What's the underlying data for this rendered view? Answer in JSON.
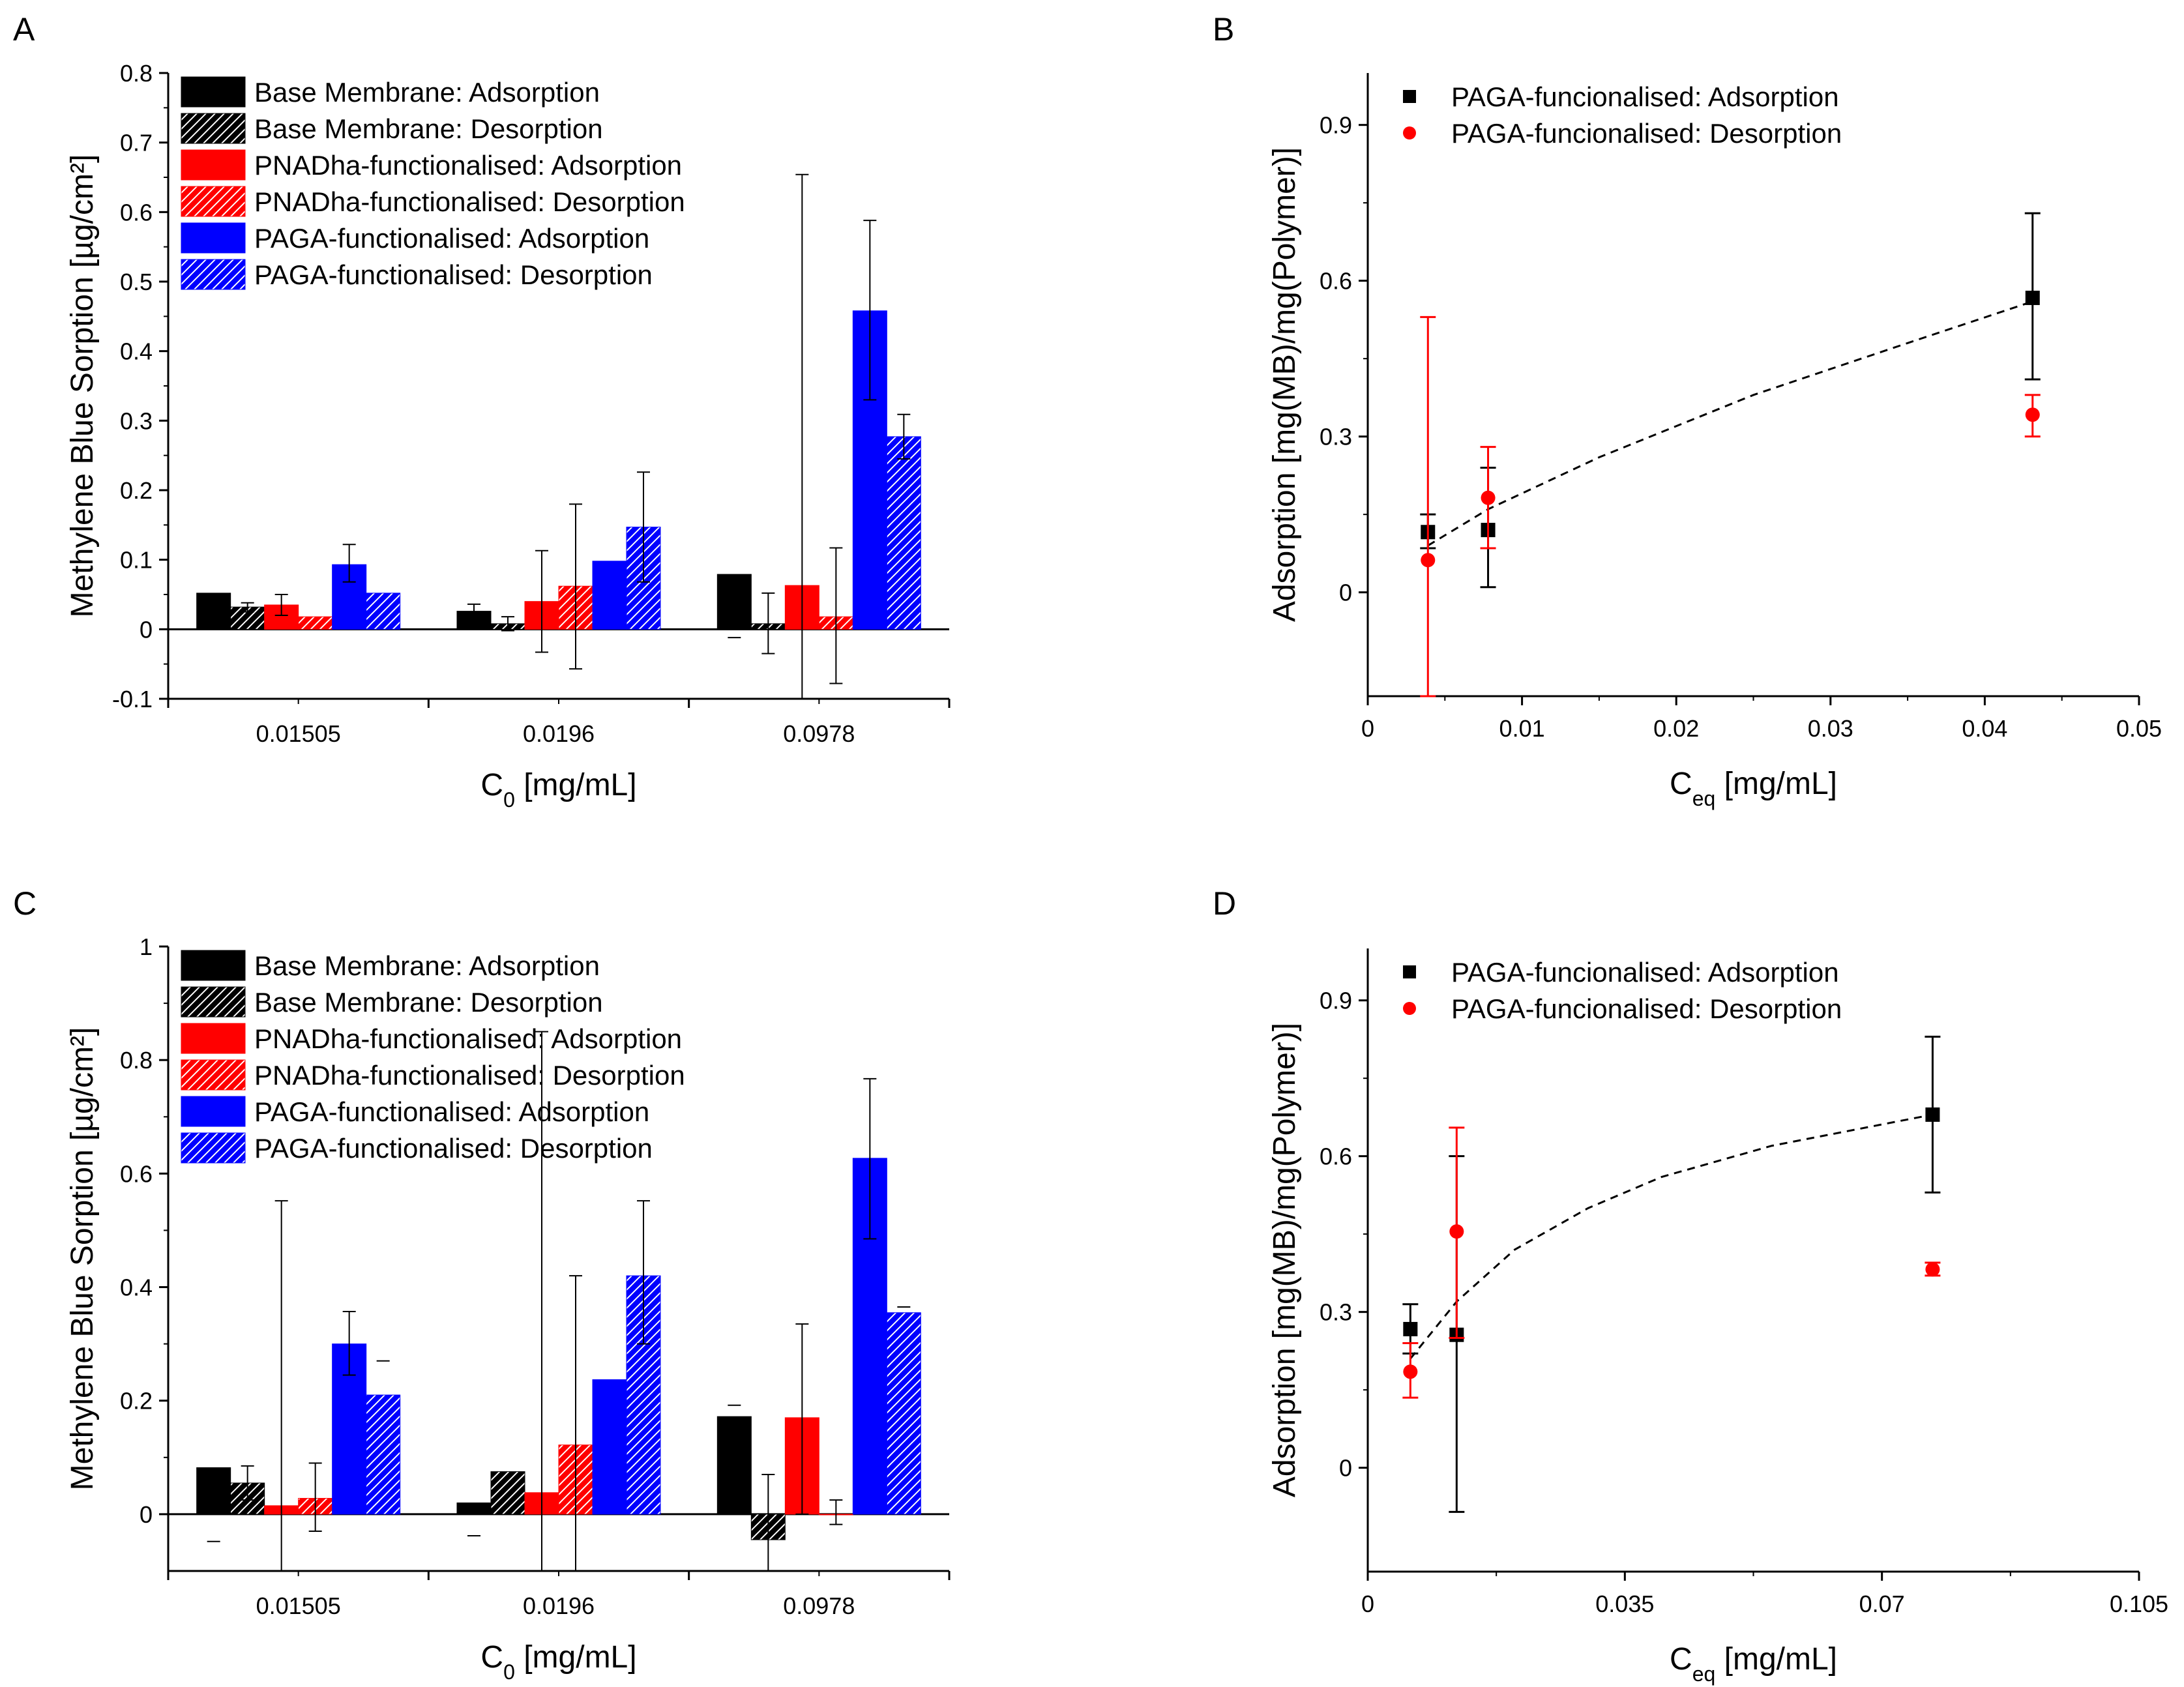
{
  "chart_data": [
    {
      "panel": "A",
      "type": "bar",
      "xlabel": "C",
      "xlabel_sub": "0",
      "xlabel_unit": " [mg/mL]",
      "ylabel": "Methylene Blue Sorption [µg/cm²]",
      "ylim": [
        -0.1,
        0.8
      ],
      "yticks": [
        -0.1,
        0,
        0.1,
        0.2,
        0.3,
        0.4,
        0.5,
        0.6,
        0.7,
        0.8
      ],
      "ytick_labels": [
        "-0.1",
        "0",
        "0.1",
        "0.2",
        "0.3",
        "0.4",
        "0.5",
        "0.6",
        "0.7",
        "0.8"
      ],
      "categories": [
        "0.01505",
        "0.0196",
        "0.0978"
      ],
      "series": [
        {
          "name": "Base Membrane: Adsorption",
          "color": "#000000",
          "hatch": false,
          "values": [
            0.052,
            0.026,
            0.079
          ],
          "err": [
            [
              null,
              null
            ],
            [
              0.036,
              0.018
            ],
            [
              -0.012,
              null
            ]
          ]
        },
        {
          "name": "Base Membrane: Desorption",
          "color": "#000000",
          "hatch": true,
          "values": [
            0.032,
            0.008,
            0.008
          ],
          "err": [
            [
              0.025,
              0.038
            ],
            [
              -0.002,
              0.018
            ],
            [
              -0.035,
              0.052
            ]
          ]
        },
        {
          "name": "PNADha-functionalised: Adsorption",
          "color": "#ff0000",
          "hatch": false,
          "values": [
            0.035,
            0.04,
            0.063
          ],
          "err": [
            [
              0.02,
              0.05
            ],
            [
              -0.033,
              0.113
            ],
            [
              -0.1,
              0.654
            ]
          ]
        },
        {
          "name": "PNADha-functionalised: Desorption",
          "color": "#ff0000",
          "hatch": true,
          "values": [
            0.018,
            0.062,
            0.018
          ],
          "err": [
            [
              null,
              null
            ],
            [
              -0.057,
              0.18
            ],
            [
              -0.078,
              0.117
            ]
          ]
        },
        {
          "name": "PAGA-functionalised: Adsorption",
          "color": "#0000ff",
          "hatch": false,
          "values": [
            0.093,
            0.098,
            0.458
          ],
          "err": [
            [
              0.068,
              0.122
            ],
            [
              null,
              null
            ],
            [
              0.33,
              0.588
            ]
          ]
        },
        {
          "name": "PAGA-functionalised: Desorption",
          "color": "#0000ff",
          "hatch": true,
          "values": [
            0.052,
            0.147,
            0.277
          ],
          "err": [
            [
              null,
              null
            ],
            [
              0.068,
              0.226
            ],
            [
              0.245,
              0.309
            ]
          ]
        }
      ]
    },
    {
      "panel": "B",
      "type": "scatter",
      "xlabel": "C",
      "xlabel_sub": "eq",
      "xlabel_unit": " [mg/mL]",
      "ylabel": "Adsorption [mg(MB)/mg(Polymer)]",
      "xlim": [
        0,
        0.05
      ],
      "ylim": [
        -0.2,
        1.0
      ],
      "xticks": [
        0,
        0.01,
        0.02,
        0.03,
        0.04,
        0.05
      ],
      "xtick_labels": [
        "0",
        "0.01",
        "0.02",
        "0.03",
        "0.04",
        "0.05"
      ],
      "yticks": [
        0,
        0.3,
        0.6,
        0.9
      ],
      "ytick_labels": [
        "0",
        "0.3",
        "0.6",
        "0.9"
      ],
      "series": [
        {
          "name": "PAGA-funcionalised: Adsorption",
          "color": "#000000",
          "marker": "square",
          "x": [
            0.0039,
            0.0078,
            0.0431
          ],
          "y": [
            0.116,
            0.12,
            0.567
          ],
          "err": [
            [
              0.085,
              0.15
            ],
            [
              0.01,
              0.24
            ],
            [
              0.41,
              0.73
            ]
          ]
        },
        {
          "name": "PAGA-funcionalised: Desorption",
          "color": "#ff0000",
          "marker": "circle",
          "x": [
            0.0039,
            0.0078,
            0.0431
          ],
          "y": [
            0.062,
            0.182,
            0.342
          ],
          "err": [
            [
              -0.2,
              0.53
            ],
            [
              0.085,
              0.28
            ],
            [
              0.3,
              0.38
            ]
          ]
        }
      ],
      "fit": {
        "x": [
          0.0039,
          0.0078,
          0.015,
          0.025,
          0.035,
          0.0431
        ],
        "y": [
          0.09,
          0.16,
          0.26,
          0.38,
          0.48,
          0.56
        ]
      }
    },
    {
      "panel": "C",
      "type": "bar",
      "xlabel": "C",
      "xlabel_sub": "0",
      "xlabel_unit": " [mg/mL]",
      "ylabel": "Methylene Blue Sorption [µg/cm²]",
      "ylim": [
        -0.1,
        1.0
      ],
      "yticks": [
        0,
        0.2,
        0.4,
        0.6,
        0.8,
        1.0
      ],
      "ytick_labels": [
        "0",
        "0.2",
        "0.4",
        "0.6",
        "0.8",
        "1"
      ],
      "categories": [
        "0.01505",
        "0.0196",
        "0.0978"
      ],
      "series": [
        {
          "name": "Base Membrane: Adsorption",
          "color": "#000000",
          "hatch": false,
          "values": [
            0.082,
            0.02,
            0.172
          ],
          "err": [
            [
              -0.048,
              null
            ],
            [
              -0.038,
              null
            ],
            [
              null,
              0.192
            ]
          ]
        },
        {
          "name": "Base Membrane: Desorption",
          "color": "#000000",
          "hatch": true,
          "values": [
            0.055,
            0.075,
            -0.045
          ],
          "err": [
            [
              0.025,
              0.085
            ],
            [
              null,
              null
            ],
            [
              -0.1,
              0.07
            ]
          ]
        },
        {
          "name": "PNADha-functionalised: Adsorption",
          "color": "#ff0000",
          "hatch": false,
          "values": [
            0.015,
            0.038,
            0.17
          ],
          "err": [
            [
              -0.1,
              0.552
            ],
            [
              -0.1,
              0.85
            ],
            [
              0.0,
              0.335
            ]
          ]
        },
        {
          "name": "PNADha-functionalised: Desorption",
          "color": "#ff0000",
          "hatch": true,
          "values": [
            0.028,
            0.122,
            0.0
          ],
          "err": [
            [
              -0.03,
              0.09
            ],
            [
              -0.1,
              0.42
            ],
            [
              -0.018,
              0.025
            ]
          ]
        },
        {
          "name": "PAGA-functionalised: Adsorption",
          "color": "#0000ff",
          "hatch": false,
          "values": [
            0.3,
            0.237,
            0.627
          ],
          "err": [
            [
              0.245,
              0.357
            ],
            [
              null,
              null
            ],
            [
              0.485,
              0.767
            ]
          ]
        },
        {
          "name": "PAGA-functionalised: Desorption",
          "color": "#0000ff",
          "hatch": true,
          "values": [
            0.21,
            0.42,
            0.355
          ],
          "err": [
            [
              null,
              0.27
            ],
            [
              0.3,
              0.552
            ],
            [
              null,
              0.365
            ]
          ]
        }
      ]
    },
    {
      "panel": "D",
      "type": "scatter",
      "xlabel": "C",
      "xlabel_sub": "eq",
      "xlabel_unit": " [mg/mL]",
      "ylabel": "Adsorption [mg(MB)/mg(Polymer)]",
      "xlim": [
        0,
        0.105
      ],
      "ylim": [
        -0.2,
        1.0
      ],
      "xticks": [
        0,
        0.035,
        0.07,
        0.105
      ],
      "xtick_labels": [
        "0",
        "0.035",
        "0.07",
        "0.105"
      ],
      "yticks": [
        0,
        0.3,
        0.6,
        0.9
      ],
      "ytick_labels": [
        "0",
        "0.3",
        "0.6",
        "0.9"
      ],
      "series": [
        {
          "name": "PAGA-funcionalised: Adsorption",
          "color": "#000000",
          "marker": "square",
          "x": [
            0.0058,
            0.0121,
            0.0769
          ],
          "y": [
            0.267,
            0.256,
            0.68
          ],
          "err": [
            [
              0.22,
              0.315
            ],
            [
              -0.085,
              0.6
            ],
            [
              0.53,
              0.83
            ]
          ]
        },
        {
          "name": "PAGA-funcionalised: Desorption",
          "color": "#ff0000",
          "marker": "circle",
          "x": [
            0.0058,
            0.0121,
            0.0769
          ],
          "y": [
            0.185,
            0.455,
            0.382
          ],
          "err": [
            [
              0.135,
              0.24
            ],
            [
              0.25,
              0.655
            ],
            [
              0.37,
              0.395
            ]
          ]
        }
      ],
      "fit": {
        "x": [
          0.0058,
          0.0121,
          0.02,
          0.03,
          0.04,
          0.055,
          0.0769
        ],
        "y": [
          0.21,
          0.32,
          0.42,
          0.5,
          0.56,
          0.62,
          0.68
        ]
      }
    }
  ]
}
